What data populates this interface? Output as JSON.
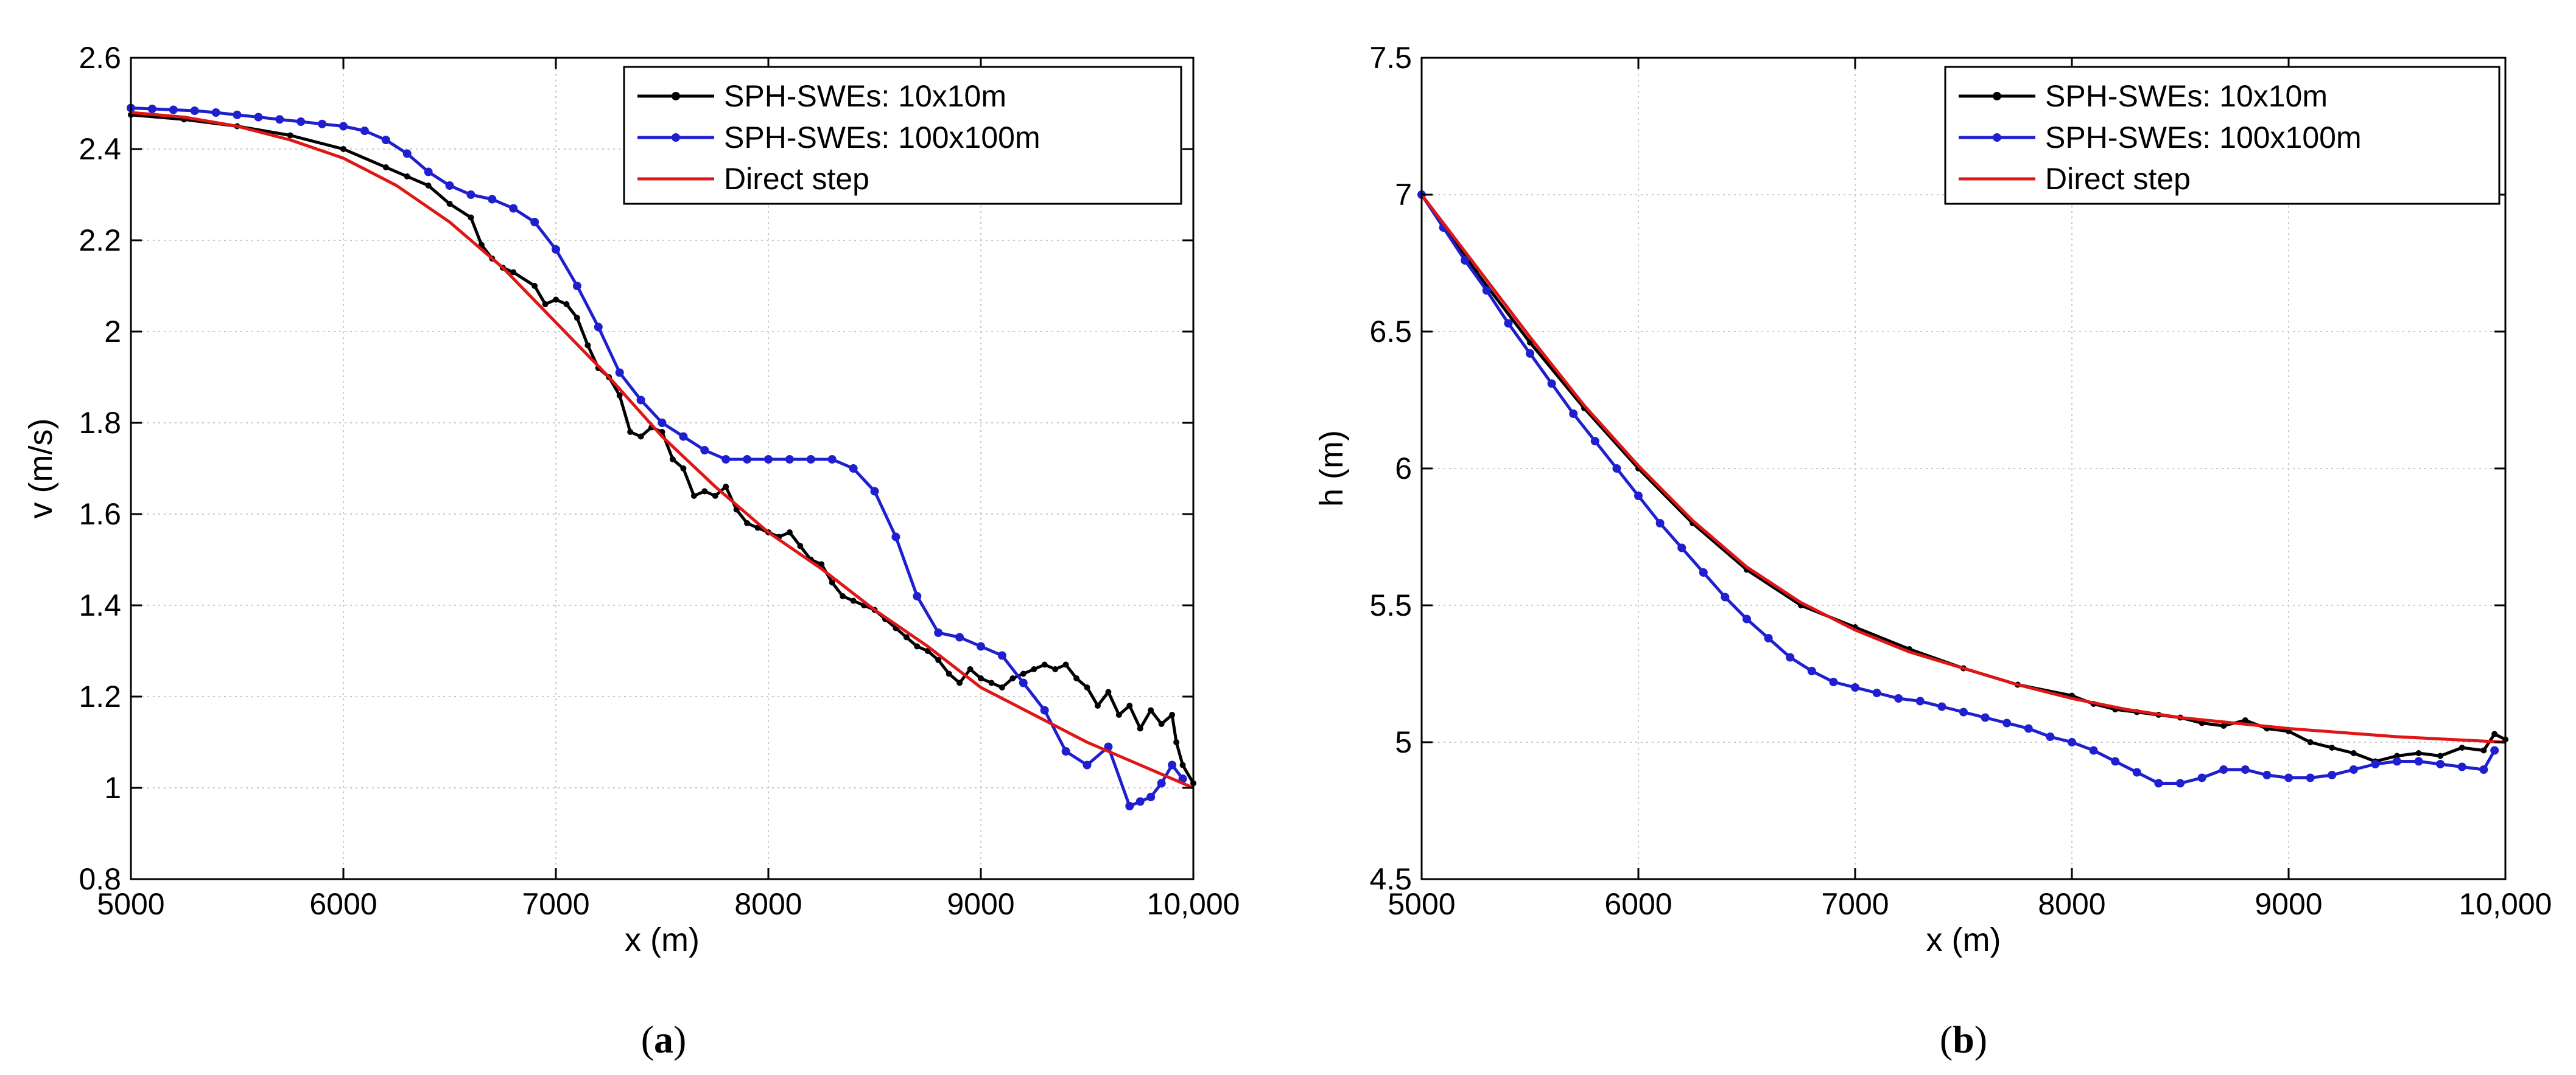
{
  "chart_data": [
    {
      "type": "line",
      "panel": "a",
      "caption_open": "(",
      "caption_letter": "a",
      "caption_close": ")",
      "xlabel": "x (m)",
      "ylabel": "v (m/s)",
      "xlim": [
        5000,
        10000
      ],
      "ylim": [
        0.8,
        2.6
      ],
      "xticks": [
        5000,
        6000,
        7000,
        8000,
        9000,
        10000
      ],
      "xtick_labels": [
        "5000",
        "6000",
        "7000",
        "8000",
        "9000",
        "10,000"
      ],
      "yticks": [
        0.8,
        1.0,
        1.2,
        1.4,
        1.6,
        1.8,
        2.0,
        2.2,
        2.4,
        2.6
      ],
      "ytick_labels": [
        "0.8",
        "1",
        "1.2",
        "1.4",
        "1.6",
        "1.8",
        "2",
        "2.2",
        "2.4",
        "2.6"
      ],
      "grid": true,
      "legend_position": "top-right",
      "series": [
        {
          "name": "SPH-SWEs: 10x10m",
          "color": "#000000",
          "marker": "dot",
          "x": [
            5000,
            5250,
            5500,
            5750,
            6000,
            6200,
            6300,
            6400,
            6500,
            6600,
            6650,
            6700,
            6750,
            6800,
            6900,
            6950,
            7000,
            7050,
            7100,
            7150,
            7200,
            7250,
            7300,
            7350,
            7400,
            7450,
            7500,
            7550,
            7600,
            7650,
            7700,
            7750,
            7800,
            7850,
            7900,
            7950,
            8000,
            8050,
            8100,
            8150,
            8200,
            8250,
            8300,
            8350,
            8400,
            8450,
            8500,
            8550,
            8600,
            8650,
            8700,
            8750,
            8800,
            8850,
            8900,
            8950,
            9000,
            9050,
            9100,
            9150,
            9200,
            9250,
            9300,
            9350,
            9400,
            9450,
            9500,
            9550,
            9600,
            9650,
            9700,
            9750,
            9800,
            9850,
            9900,
            9920,
            9950,
            10000
          ],
          "values": [
            2.475,
            2.465,
            2.45,
            2.43,
            2.4,
            2.36,
            2.34,
            2.32,
            2.28,
            2.25,
            2.19,
            2.16,
            2.14,
            2.13,
            2.1,
            2.06,
            2.07,
            2.06,
            2.03,
            1.97,
            1.92,
            1.9,
            1.86,
            1.78,
            1.77,
            1.79,
            1.78,
            1.72,
            1.7,
            1.64,
            1.65,
            1.64,
            1.66,
            1.61,
            1.58,
            1.57,
            1.56,
            1.55,
            1.56,
            1.53,
            1.5,
            1.49,
            1.45,
            1.42,
            1.41,
            1.4,
            1.39,
            1.37,
            1.35,
            1.33,
            1.31,
            1.3,
            1.28,
            1.25,
            1.23,
            1.26,
            1.24,
            1.23,
            1.22,
            1.24,
            1.25,
            1.26,
            1.27,
            1.26,
            1.27,
            1.24,
            1.22,
            1.18,
            1.21,
            1.16,
            1.18,
            1.13,
            1.17,
            1.14,
            1.16,
            1.1,
            1.05,
            1.01
          ]
        },
        {
          "name": "SPH-SWEs: 100x100m",
          "color": "#1f1fd0",
          "marker": "dot",
          "x": [
            5000,
            5100,
            5200,
            5300,
            5400,
            5500,
            5600,
            5700,
            5800,
            5900,
            6000,
            6100,
            6200,
            6300,
            6400,
            6500,
            6600,
            6700,
            6800,
            6900,
            7000,
            7100,
            7200,
            7300,
            7400,
            7500,
            7600,
            7700,
            7800,
            7900,
            8000,
            8100,
            8200,
            8300,
            8400,
            8500,
            8600,
            8700,
            8800,
            8900,
            9000,
            9100,
            9200,
            9300,
            9400,
            9500,
            9600,
            9700,
            9750,
            9800,
            9850,
            9900,
            9950
          ],
          "values": [
            2.49,
            2.488,
            2.486,
            2.484,
            2.48,
            2.475,
            2.47,
            2.465,
            2.46,
            2.455,
            2.45,
            2.44,
            2.42,
            2.39,
            2.35,
            2.32,
            2.3,
            2.29,
            2.27,
            2.24,
            2.18,
            2.1,
            2.01,
            1.91,
            1.85,
            1.8,
            1.77,
            1.74,
            1.72,
            1.72,
            1.72,
            1.72,
            1.72,
            1.72,
            1.7,
            1.65,
            1.55,
            1.42,
            1.34,
            1.33,
            1.31,
            1.29,
            1.23,
            1.17,
            1.08,
            1.05,
            1.09,
            0.96,
            0.97,
            0.98,
            1.01,
            1.05,
            1.02
          ]
        },
        {
          "name": "Direct step",
          "color": "#e01515",
          "marker": "none",
          "x": [
            5000,
            5250,
            5500,
            5750,
            6000,
            6250,
            6500,
            6750,
            7000,
            7250,
            7500,
            7750,
            8000,
            8250,
            8500,
            8750,
            9000,
            9250,
            9500,
            9750,
            10000
          ],
          "values": [
            2.48,
            2.47,
            2.45,
            2.42,
            2.38,
            2.32,
            2.24,
            2.14,
            2.02,
            1.9,
            1.77,
            1.66,
            1.56,
            1.48,
            1.39,
            1.31,
            1.22,
            1.16,
            1.1,
            1.05,
            1.0
          ]
        }
      ]
    },
    {
      "type": "line",
      "panel": "b",
      "caption_open": "(",
      "caption_letter": "b",
      "caption_close": ")",
      "xlabel": "x (m)",
      "ylabel": "h (m)",
      "xlim": [
        5000,
        10000
      ],
      "ylim": [
        4.5,
        7.5
      ],
      "xticks": [
        5000,
        6000,
        7000,
        8000,
        9000,
        10000
      ],
      "xtick_labels": [
        "5000",
        "6000",
        "7000",
        "8000",
        "9000",
        "10,000"
      ],
      "yticks": [
        4.5,
        5.0,
        5.5,
        6.0,
        6.5,
        7.0,
        7.5
      ],
      "ytick_labels": [
        "4.5",
        "5",
        "5.5",
        "6",
        "6.5",
        "7",
        "7.5"
      ],
      "grid": true,
      "legend_position": "top-right",
      "series": [
        {
          "name": "SPH-SWEs: 10x10m",
          "color": "#000000",
          "marker": "dot",
          "x": [
            5000,
            5250,
            5500,
            5750,
            6000,
            6250,
            6500,
            6750,
            7000,
            7250,
            7500,
            7750,
            8000,
            8100,
            8200,
            8300,
            8400,
            8500,
            8600,
            8700,
            8800,
            8900,
            9000,
            9100,
            9200,
            9300,
            9400,
            9500,
            9600,
            9700,
            9800,
            9900,
            9950,
            10000
          ],
          "values": [
            7.0,
            6.72,
            6.46,
            6.22,
            6.0,
            5.8,
            5.63,
            5.5,
            5.42,
            5.34,
            5.27,
            5.21,
            5.17,
            5.14,
            5.12,
            5.11,
            5.1,
            5.09,
            5.07,
            5.06,
            5.08,
            5.05,
            5.04,
            5.0,
            4.98,
            4.96,
            4.93,
            4.95,
            4.96,
            4.95,
            4.98,
            4.97,
            5.03,
            5.01
          ]
        },
        {
          "name": "SPH-SWEs: 100x100m",
          "color": "#1f1fd0",
          "marker": "dot",
          "x": [
            5000,
            5100,
            5200,
            5300,
            5400,
            5500,
            5600,
            5700,
            5800,
            5900,
            6000,
            6100,
            6200,
            6300,
            6400,
            6500,
            6600,
            6700,
            6800,
            6900,
            7000,
            7100,
            7200,
            7300,
            7400,
            7500,
            7600,
            7700,
            7800,
            7900,
            8000,
            8100,
            8200,
            8300,
            8400,
            8500,
            8600,
            8700,
            8800,
            8900,
            9000,
            9100,
            9200,
            9300,
            9400,
            9500,
            9600,
            9700,
            9800,
            9900,
            9950
          ],
          "values": [
            7.0,
            6.88,
            6.76,
            6.65,
            6.53,
            6.42,
            6.31,
            6.2,
            6.1,
            6.0,
            5.9,
            5.8,
            5.71,
            5.62,
            5.53,
            5.45,
            5.38,
            5.31,
            5.26,
            5.22,
            5.2,
            5.18,
            5.16,
            5.15,
            5.13,
            5.11,
            5.09,
            5.07,
            5.05,
            5.02,
            5.0,
            4.97,
            4.93,
            4.89,
            4.85,
            4.85,
            4.87,
            4.9,
            4.9,
            4.88,
            4.87,
            4.87,
            4.88,
            4.9,
            4.92,
            4.93,
            4.93,
            4.92,
            4.91,
            4.9,
            4.97
          ]
        },
        {
          "name": "Direct step",
          "color": "#e01515",
          "marker": "none",
          "x": [
            5000,
            5250,
            5500,
            5750,
            6000,
            6250,
            6500,
            6750,
            7000,
            7250,
            7500,
            7750,
            8000,
            8250,
            8500,
            8750,
            9000,
            9250,
            9500,
            9750,
            10000
          ],
          "values": [
            7.0,
            6.74,
            6.48,
            6.23,
            6.01,
            5.81,
            5.64,
            5.51,
            5.41,
            5.33,
            5.27,
            5.21,
            5.16,
            5.12,
            5.09,
            5.07,
            5.05,
            5.035,
            5.02,
            5.01,
            5.0
          ]
        }
      ]
    }
  ]
}
